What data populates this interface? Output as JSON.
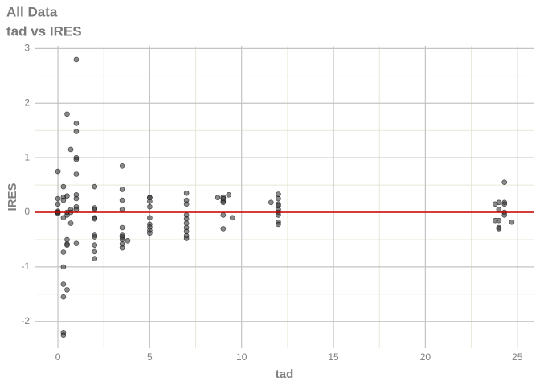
{
  "chart_data": {
    "type": "scatter",
    "title": "All Data",
    "subtitle": "tad vs IRES",
    "x_label": "tad",
    "y_label": "IRES",
    "xlim": [
      -1.27,
      25.93
    ],
    "xticks": [
      0,
      5,
      10,
      15,
      20,
      25
    ],
    "ylim": [
      -2.49,
      3.05
    ],
    "yticks": [
      -2,
      -1,
      0,
      1,
      2,
      3
    ],
    "grid": true,
    "hline": 0,
    "hline_color": "#cc0000",
    "series": [
      {
        "color": "#3a3a3a",
        "x": [
          0,
          0,
          0,
          0,
          0,
          0,
          0,
          0.3,
          0.3,
          0.3,
          0.3,
          0.3,
          0.3,
          0.3,
          0.3,
          0.3,
          0.3,
          0.5,
          0.5,
          0.5,
          0.5,
          0.5,
          0.5,
          0.5,
          0.5,
          0.7,
          0.7,
          0.7,
          0.7,
          1,
          1,
          1,
          1,
          1,
          1,
          1,
          1,
          1,
          1,
          1,
          2,
          2,
          2,
          2,
          2,
          2,
          2,
          2,
          2,
          2,
          3.5,
          3.5,
          3.5,
          3.5,
          3.5,
          3.5,
          3.5,
          3.5,
          3.5,
          3.5,
          3.8,
          5,
          5,
          5,
          5,
          5,
          5,
          5,
          5,
          5,
          7,
          7,
          7,
          7,
          7,
          7,
          7,
          7,
          7,
          7,
          9,
          9,
          9,
          9,
          9,
          9,
          8.7,
          9.3,
          9.5,
          12,
          12,
          12,
          12,
          12,
          12,
          12,
          12,
          12,
          11.6,
          24.3,
          24,
          24.3,
          24.3,
          24,
          24.3,
          24.3,
          24,
          24,
          24,
          23.8,
          23.8,
          24.7
        ],
        "values": [
          0.75,
          0.25,
          0.15,
          0.02,
          0,
          -0.02,
          0,
          0.47,
          0.28,
          0.22,
          -0.1,
          -0.73,
          -1.0,
          -1.32,
          -1.55,
          -2.2,
          -2.25,
          1.8,
          0.3,
          -0.05,
          -0.5,
          -0.58,
          -0.6,
          -1.42,
          0,
          1.15,
          0.05,
          -0.2,
          0,
          2.8,
          1.63,
          1.48,
          1.0,
          0.97,
          0.7,
          0.32,
          0.25,
          0.1,
          0.05,
          -0.57,
          0.47,
          0.08,
          0.05,
          -0.1,
          -0.12,
          -0.42,
          -0.45,
          -0.6,
          -0.72,
          -0.85,
          0.85,
          0.42,
          0.22,
          0.05,
          -0.28,
          -0.42,
          -0.45,
          -0.5,
          -0.58,
          -0.65,
          -0.52,
          0.27,
          0.27,
          0.2,
          0.1,
          -0.1,
          -0.22,
          -0.27,
          -0.33,
          -0.38,
          0.35,
          0.22,
          0.15,
          -0.05,
          -0.12,
          -0.2,
          -0.28,
          -0.35,
          -0.43,
          -0.48,
          0.28,
          0.25,
          0.2,
          0.18,
          -0.05,
          -0.3,
          0.27,
          0.32,
          -0.1,
          0.33,
          0.25,
          0.15,
          0.12,
          0.05,
          0,
          -0.05,
          -0.18,
          -0.22,
          0.18,
          0.55,
          0.18,
          0.18,
          0.15,
          0.05,
          0,
          -0.05,
          -0.15,
          -0.28,
          -0.3,
          0.15,
          -0.15,
          -0.18
        ]
      }
    ]
  }
}
